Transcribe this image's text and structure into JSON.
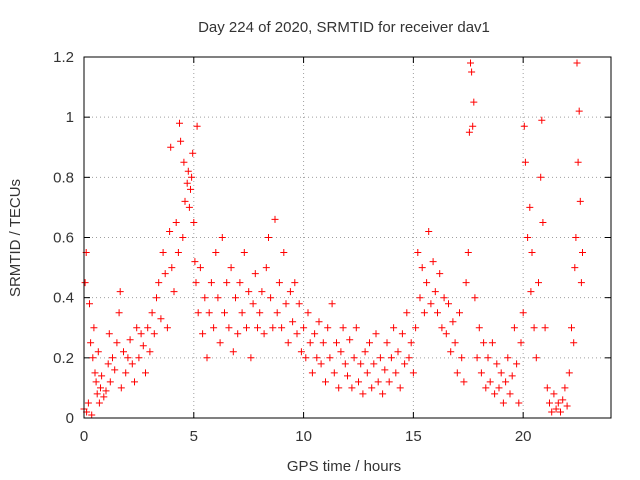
{
  "chart_data": {
    "type": "scatter",
    "title": "Day 224 of 2020, SRMTID for receiver dav1",
    "xlabel": "GPS time / hours",
    "ylabel": "SRMTID / TECUs",
    "xlim": [
      0,
      24
    ],
    "ylim": [
      0,
      1.2
    ],
    "xticks": [
      0,
      5,
      10,
      15,
      20
    ],
    "xtick_labels": [
      "0",
      "5",
      "10",
      "15",
      "20"
    ],
    "yticks": [
      0,
      0.2,
      0.4,
      0.6,
      0.8,
      1.0,
      1.2
    ],
    "ytick_labels": [
      "0",
      "0.2",
      "0.4",
      "0.6",
      "0.8",
      "1",
      "1.2"
    ],
    "grid": true,
    "marker": "+",
    "color": "#ff0000",
    "series": [
      {
        "name": "SRMTID",
        "points": [
          [
            0.0,
            0.03
          ],
          [
            0.05,
            0.45
          ],
          [
            0.1,
            0.55
          ],
          [
            0.12,
            0.02
          ],
          [
            0.2,
            0.05
          ],
          [
            0.25,
            0.38
          ],
          [
            0.3,
            0.25
          ],
          [
            0.35,
            0.01
          ],
          [
            0.4,
            0.2
          ],
          [
            0.45,
            0.3
          ],
          [
            0.5,
            0.15
          ],
          [
            0.55,
            0.12
          ],
          [
            0.6,
            0.08
          ],
          [
            0.65,
            0.22
          ],
          [
            0.7,
            0.05
          ],
          [
            0.75,
            0.1
          ],
          [
            0.8,
            0.14
          ],
          [
            0.9,
            0.07
          ],
          [
            1.0,
            0.09
          ],
          [
            1.1,
            0.18
          ],
          [
            1.15,
            0.28
          ],
          [
            1.2,
            0.12
          ],
          [
            1.3,
            0.2
          ],
          [
            1.4,
            0.16
          ],
          [
            1.5,
            0.25
          ],
          [
            1.6,
            0.35
          ],
          [
            1.65,
            0.42
          ],
          [
            1.7,
            0.1
          ],
          [
            1.8,
            0.22
          ],
          [
            1.9,
            0.15
          ],
          [
            2.0,
            0.2
          ],
          [
            2.1,
            0.26
          ],
          [
            2.2,
            0.18
          ],
          [
            2.3,
            0.12
          ],
          [
            2.4,
            0.3
          ],
          [
            2.5,
            0.2
          ],
          [
            2.6,
            0.28
          ],
          [
            2.7,
            0.24
          ],
          [
            2.8,
            0.15
          ],
          [
            2.9,
            0.3
          ],
          [
            3.0,
            0.22
          ],
          [
            3.1,
            0.35
          ],
          [
            3.2,
            0.28
          ],
          [
            3.3,
            0.4
          ],
          [
            3.4,
            0.45
          ],
          [
            3.5,
            0.33
          ],
          [
            3.6,
            0.55
          ],
          [
            3.7,
            0.48
          ],
          [
            3.8,
            0.3
          ],
          [
            3.9,
            0.62
          ],
          [
            3.95,
            0.9
          ],
          [
            4.0,
            0.5
          ],
          [
            4.1,
            0.42
          ],
          [
            4.2,
            0.65
          ],
          [
            4.3,
            0.55
          ],
          [
            4.35,
            0.98
          ],
          [
            4.4,
            0.92
          ],
          [
            4.5,
            0.6
          ],
          [
            4.55,
            0.85
          ],
          [
            4.6,
            0.72
          ],
          [
            4.7,
            0.78
          ],
          [
            4.75,
            0.82
          ],
          [
            4.8,
            0.7
          ],
          [
            4.85,
            0.76
          ],
          [
            4.9,
            0.8
          ],
          [
            4.95,
            0.88
          ],
          [
            5.0,
            0.65
          ],
          [
            5.05,
            0.52
          ],
          [
            5.1,
            0.45
          ],
          [
            5.15,
            0.97
          ],
          [
            5.2,
            0.35
          ],
          [
            5.3,
            0.5
          ],
          [
            5.4,
            0.28
          ],
          [
            5.5,
            0.4
          ],
          [
            5.6,
            0.2
          ],
          [
            5.7,
            0.35
          ],
          [
            5.8,
            0.45
          ],
          [
            5.9,
            0.3
          ],
          [
            6.0,
            0.55
          ],
          [
            6.1,
            0.4
          ],
          [
            6.2,
            0.25
          ],
          [
            6.3,
            0.6
          ],
          [
            6.4,
            0.35
          ],
          [
            6.5,
            0.45
          ],
          [
            6.6,
            0.3
          ],
          [
            6.7,
            0.5
          ],
          [
            6.8,
            0.22
          ],
          [
            6.9,
            0.4
          ],
          [
            7.0,
            0.28
          ],
          [
            7.1,
            0.45
          ],
          [
            7.2,
            0.35
          ],
          [
            7.3,
            0.55
          ],
          [
            7.4,
            0.3
          ],
          [
            7.5,
            0.42
          ],
          [
            7.6,
            0.2
          ],
          [
            7.7,
            0.38
          ],
          [
            7.8,
            0.48
          ],
          [
            7.9,
            0.3
          ],
          [
            8.0,
            0.35
          ],
          [
            8.1,
            0.42
          ],
          [
            8.2,
            0.28
          ],
          [
            8.3,
            0.5
          ],
          [
            8.4,
            0.6
          ],
          [
            8.5,
            0.4
          ],
          [
            8.6,
            0.3
          ],
          [
            8.7,
            0.66
          ],
          [
            8.8,
            0.35
          ],
          [
            8.9,
            0.45
          ],
          [
            9.0,
            0.3
          ],
          [
            9.1,
            0.55
          ],
          [
            9.2,
            0.38
          ],
          [
            9.3,
            0.25
          ],
          [
            9.4,
            0.42
          ],
          [
            9.5,
            0.32
          ],
          [
            9.6,
            0.45
          ],
          [
            9.7,
            0.28
          ],
          [
            9.8,
            0.38
          ],
          [
            9.9,
            0.22
          ],
          [
            10.0,
            0.3
          ],
          [
            10.1,
            0.2
          ],
          [
            10.2,
            0.35
          ],
          [
            10.3,
            0.25
          ],
          [
            10.4,
            0.15
          ],
          [
            10.5,
            0.28
          ],
          [
            10.6,
            0.2
          ],
          [
            10.7,
            0.32
          ],
          [
            10.8,
            0.18
          ],
          [
            10.9,
            0.25
          ],
          [
            11.0,
            0.12
          ],
          [
            11.1,
            0.3
          ],
          [
            11.2,
            0.2
          ],
          [
            11.3,
            0.38
          ],
          [
            11.4,
            0.15
          ],
          [
            11.5,
            0.25
          ],
          [
            11.6,
            0.1
          ],
          [
            11.7,
            0.22
          ],
          [
            11.8,
            0.3
          ],
          [
            11.9,
            0.18
          ],
          [
            12.0,
            0.14
          ],
          [
            12.1,
            0.26
          ],
          [
            12.2,
            0.1
          ],
          [
            12.3,
            0.2
          ],
          [
            12.4,
            0.3
          ],
          [
            12.5,
            0.12
          ],
          [
            12.6,
            0.18
          ],
          [
            12.7,
            0.08
          ],
          [
            12.8,
            0.22
          ],
          [
            12.9,
            0.15
          ],
          [
            13.0,
            0.25
          ],
          [
            13.1,
            0.1
          ],
          [
            13.2,
            0.18
          ],
          [
            13.3,
            0.28
          ],
          [
            13.4,
            0.12
          ],
          [
            13.5,
            0.2
          ],
          [
            13.6,
            0.08
          ],
          [
            13.7,
            0.16
          ],
          [
            13.8,
            0.25
          ],
          [
            13.9,
            0.12
          ],
          [
            14.0,
            0.2
          ],
          [
            14.1,
            0.3
          ],
          [
            14.2,
            0.15
          ],
          [
            14.3,
            0.22
          ],
          [
            14.4,
            0.1
          ],
          [
            14.5,
            0.28
          ],
          [
            14.6,
            0.18
          ],
          [
            14.7,
            0.35
          ],
          [
            14.8,
            0.2
          ],
          [
            14.9,
            0.25
          ],
          [
            15.0,
            0.15
          ],
          [
            15.1,
            0.3
          ],
          [
            15.2,
            0.55
          ],
          [
            15.3,
            0.4
          ],
          [
            15.4,
            0.5
          ],
          [
            15.5,
            0.35
          ],
          [
            15.6,
            0.45
          ],
          [
            15.7,
            0.62
          ],
          [
            15.8,
            0.38
          ],
          [
            15.9,
            0.52
          ],
          [
            16.0,
            0.42
          ],
          [
            16.1,
            0.35
          ],
          [
            16.2,
            0.48
          ],
          [
            16.3,
            0.3
          ],
          [
            16.4,
            0.4
          ],
          [
            16.5,
            0.28
          ],
          [
            16.6,
            0.38
          ],
          [
            16.7,
            0.22
          ],
          [
            16.8,
            0.32
          ],
          [
            16.9,
            0.25
          ],
          [
            17.0,
            0.15
          ],
          [
            17.1,
            0.35
          ],
          [
            17.2,
            0.2
          ],
          [
            17.3,
            0.12
          ],
          [
            17.4,
            0.45
          ],
          [
            17.5,
            0.55
          ],
          [
            17.55,
            0.95
          ],
          [
            17.6,
            1.18
          ],
          [
            17.65,
            1.15
          ],
          [
            17.7,
            0.97
          ],
          [
            17.75,
            1.05
          ],
          [
            17.8,
            0.4
          ],
          [
            17.9,
            0.2
          ],
          [
            18.0,
            0.3
          ],
          [
            18.1,
            0.15
          ],
          [
            18.2,
            0.25
          ],
          [
            18.3,
            0.1
          ],
          [
            18.4,
            0.2
          ],
          [
            18.5,
            0.12
          ],
          [
            18.6,
            0.25
          ],
          [
            18.7,
            0.08
          ],
          [
            18.8,
            0.18
          ],
          [
            18.9,
            0.1
          ],
          [
            19.0,
            0.15
          ],
          [
            19.1,
            0.05
          ],
          [
            19.2,
            0.12
          ],
          [
            19.3,
            0.2
          ],
          [
            19.4,
            0.08
          ],
          [
            19.5,
            0.14
          ],
          [
            19.6,
            0.3
          ],
          [
            19.7,
            0.18
          ],
          [
            19.8,
            0.05
          ],
          [
            19.9,
            0.25
          ],
          [
            20.0,
            0.35
          ],
          [
            20.05,
            0.97
          ],
          [
            20.1,
            0.85
          ],
          [
            20.2,
            0.6
          ],
          [
            20.3,
            0.7
          ],
          [
            20.35,
            0.42
          ],
          [
            20.4,
            0.55
          ],
          [
            20.5,
            0.3
          ],
          [
            20.6,
            0.2
          ],
          [
            20.7,
            0.45
          ],
          [
            20.8,
            0.8
          ],
          [
            20.85,
            0.99
          ],
          [
            20.9,
            0.65
          ],
          [
            21.0,
            0.3
          ],
          [
            21.1,
            0.1
          ],
          [
            21.2,
            0.05
          ],
          [
            21.3,
            0.02
          ],
          [
            21.4,
            0.08
          ],
          [
            21.5,
            0.03
          ],
          [
            21.6,
            0.05
          ],
          [
            21.7,
            0.02
          ],
          [
            21.8,
            0.06
          ],
          [
            21.9,
            0.1
          ],
          [
            22.0,
            0.04
          ],
          [
            22.1,
            0.15
          ],
          [
            22.2,
            0.3
          ],
          [
            22.3,
            0.25
          ],
          [
            22.35,
            0.5
          ],
          [
            22.4,
            0.6
          ],
          [
            22.45,
            1.18
          ],
          [
            22.5,
            0.85
          ],
          [
            22.55,
            1.02
          ],
          [
            22.6,
            0.72
          ],
          [
            22.65,
            0.45
          ],
          [
            22.7,
            0.55
          ]
        ]
      }
    ]
  }
}
